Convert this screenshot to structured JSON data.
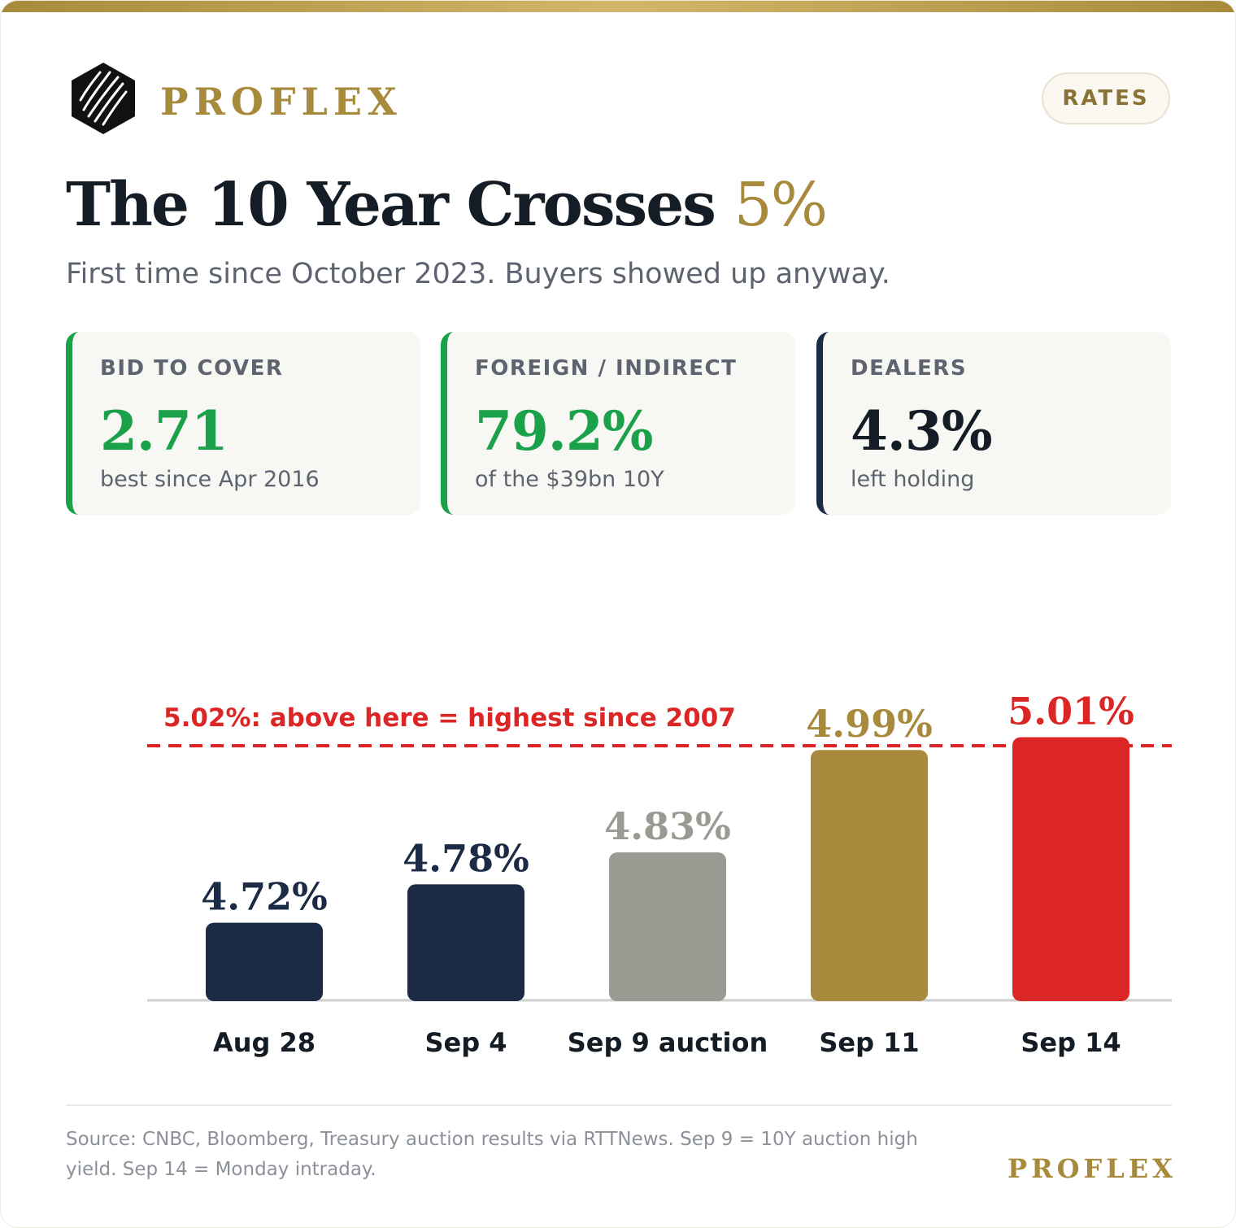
{
  "brand": {
    "name": "PROFLEX",
    "tag": "RATES",
    "footer_name": "PROFLEX"
  },
  "header": {
    "title_main": "The 10 Year Crosses",
    "title_accent": "5%",
    "subtitle": "First time since October 2023. Buyers showed up anyway."
  },
  "stats": [
    {
      "label": "BID TO COVER",
      "value": "2.71",
      "note": "best since Apr 2016",
      "color": "#1aa14a"
    },
    {
      "label": "FOREIGN / INDIRECT",
      "value": "79.2%",
      "note": "of the $39bn 10Y",
      "color": "#1aa14a"
    },
    {
      "label": "DEALERS",
      "value": "4.3%",
      "note": "left holding",
      "color": "#1b2b45"
    }
  ],
  "chart_data": {
    "type": "bar",
    "categories": [
      "Aug 28",
      "Sep 4",
      "Sep 9 auction",
      "Sep 11",
      "Sep 14"
    ],
    "values": [
      4.72,
      4.78,
      4.83,
      4.99,
      5.01
    ],
    "value_labels": [
      "4.72%",
      "4.78%",
      "4.83%",
      "4.99%",
      "5.01%"
    ],
    "bar_colors": [
      "#1b2b45",
      "#1b2b45",
      "#9a9a92",
      "#a88a3c",
      "#dc2626"
    ],
    "label_colors": [
      "#1b2b45",
      "#1b2b45",
      "#9a9a92",
      "#a88a3c",
      "#dc2626"
    ],
    "ylim": [
      4.6,
      5.05
    ],
    "reference_line": {
      "value": 5.02,
      "label": "5.02%: above here = highest since 2007",
      "color": "#dc2626"
    },
    "grid": false,
    "title": "",
    "xlabel": "",
    "ylabel": ""
  },
  "footer": {
    "source": "Source: CNBC, Bloomberg, Treasury auction results via RTTNews. Sep 9 = 10Y auction high yield. Sep 14 = Monday intraday."
  }
}
